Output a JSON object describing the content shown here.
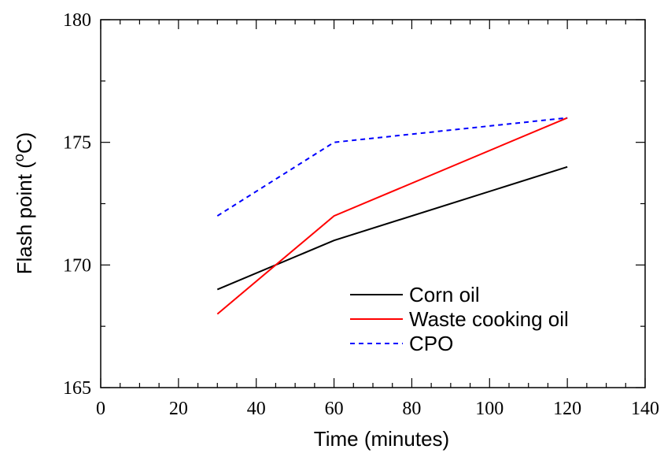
{
  "chart_data": {
    "type": "line",
    "xlabel": "Time (minutes)",
    "ylabel_main": "Flash point (",
    "ylabel_sup": "o",
    "ylabel_end": "C)",
    "xlim": [
      0,
      140
    ],
    "ylim": [
      165,
      180
    ],
    "x_ticks": [
      0,
      20,
      40,
      60,
      80,
      100,
      120,
      140
    ],
    "y_ticks": [
      165,
      170,
      175,
      180
    ],
    "x_tick_labels": [
      "0",
      "20",
      "40",
      "60",
      "80",
      "100",
      "120",
      "140"
    ],
    "y_tick_labels": [
      "165",
      "170",
      "175",
      "180"
    ],
    "grid": false,
    "legend_position": "lower-right",
    "series": [
      {
        "name": "Corn oil",
        "x": [
          30,
          60,
          120
        ],
        "y": [
          169,
          171,
          174
        ],
        "color": "#000000",
        "dash": "solid"
      },
      {
        "name": "Waste cooking oil",
        "x": [
          30,
          60,
          120
        ],
        "y": [
          168,
          172,
          176
        ],
        "color": "#ff0000",
        "dash": "solid"
      },
      {
        "name": "CPO",
        "x": [
          30,
          60,
          120
        ],
        "y": [
          172,
          175,
          176
        ],
        "color": "#0000ff",
        "dash": "dashed"
      }
    ]
  }
}
